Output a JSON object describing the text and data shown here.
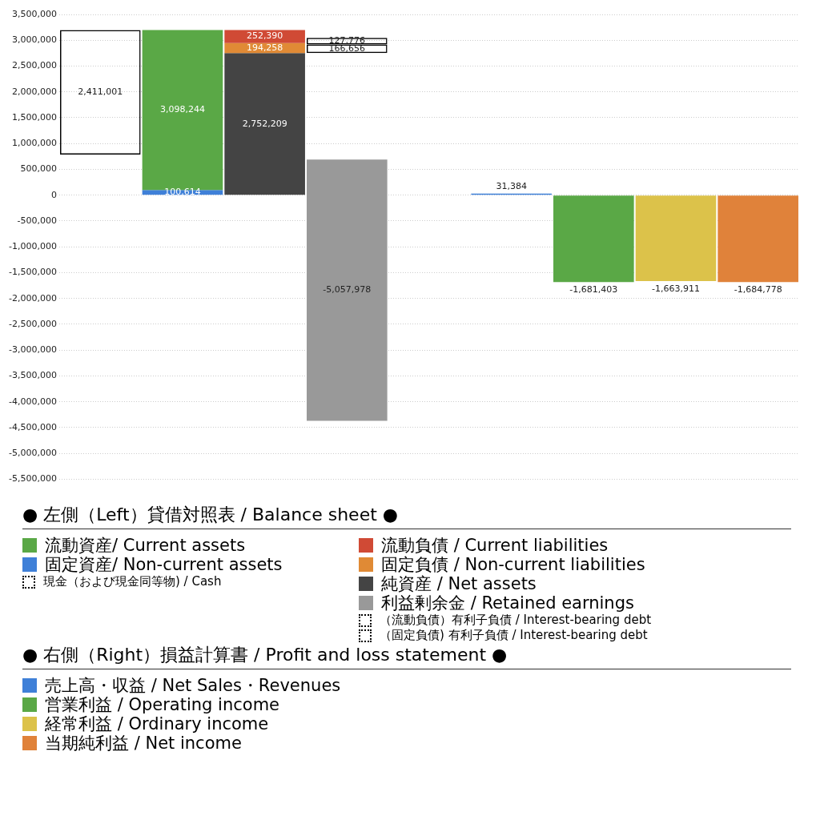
{
  "chart_data": {
    "type": "bar",
    "categories": [
      null,
      null,
      null,
      null,
      null,
      null,
      null,
      null,
      null
    ],
    "ylim": [
      -5500000,
      3500000
    ],
    "yticks": [
      {
        "value": -5500000,
        "label": "-5,500,000"
      },
      {
        "value": -5000000,
        "label": "-5,000,000"
      },
      {
        "value": -4500000,
        "label": "-4,500,000"
      },
      {
        "value": -4000000,
        "label": "-4,000,000"
      },
      {
        "value": -3500000,
        "label": "-3,500,000"
      },
      {
        "value": -3000000,
        "label": "-3,000,000"
      },
      {
        "value": -2500000,
        "label": "-2,500,000"
      },
      {
        "value": -2000000,
        "label": "-2,000,000"
      },
      {
        "value": -1500000,
        "label": "-1,500,000"
      },
      {
        "value": -1000000,
        "label": "-1,000,000"
      },
      {
        "value": -500000,
        "label": "-500,000"
      },
      0,
      {
        "value": 500000,
        "label": "500,000"
      },
      {
        "value": 1000000,
        "label": "1,000,000"
      },
      {
        "value": 1500000,
        "label": "1,500,000"
      },
      {
        "value": 2000000,
        "label": "2,000,000"
      },
      {
        "value": 2500000,
        "label": "2,500,000"
      },
      {
        "value": 3000000,
        "label": "3,000,000"
      },
      {
        "value": 3500000,
        "label": "3,500,000"
      }
    ],
    "grid": "y",
    "legend": "bottom",
    "annotations": [
      "● 左側（Left）貸借対照表 / Balance sheet ●",
      "● 右側（Right）損益計算書 / Profit and loss statement ●"
    ],
    "series": [
      {
        "name": "流動資産/ Current assets",
        "color": "#5aa846",
        "values": [
          null,
          3098244,
          null,
          null,
          null,
          null,
          null,
          null,
          null
        ],
        "base": [
          null,
          100614,
          null,
          null,
          null,
          null,
          null,
          null,
          null
        ],
        "value_labels": [
          null,
          "3,098,244",
          null,
          null,
          null,
          null,
          null,
          null,
          null
        ]
      },
      {
        "name": "固定資産/ Non-current assets",
        "color": "#3f80d8",
        "values": [
          null,
          100614,
          null,
          null,
          null,
          null,
          null,
          null,
          null
        ],
        "value_labels": [
          null,
          "100,614",
          null,
          null,
          null,
          null,
          null,
          null,
          null
        ]
      },
      {
        "name": "現金（および現金同等物) / Cash",
        "color": "#000000",
        "line_style": "dotted",
        "values": [
          2411001,
          null,
          null,
          null,
          null,
          null,
          null,
          null,
          null
        ],
        "base": [
          787857,
          null,
          null,
          null,
          null,
          null,
          null,
          null,
          null
        ],
        "value_labels": [
          "2,411,001",
          null,
          null,
          null,
          null,
          null,
          null,
          null,
          null
        ]
      },
      {
        "name": "流動負債 /  Current liabilities",
        "color": "#d04a35",
        "values": [
          null,
          null,
          252390,
          null,
          null,
          null,
          null,
          null,
          null
        ],
        "base": [
          null,
          null,
          2946467,
          null,
          null,
          null,
          null,
          null,
          null
        ],
        "value_labels": [
          null,
          null,
          "252,390",
          null,
          null,
          null,
          null,
          null,
          null
        ]
      },
      {
        "name": "固定負債 / Non-current liabilities",
        "color": "#e08a35",
        "values": [
          null,
          null,
          194258,
          null,
          null,
          null,
          null,
          null,
          null
        ],
        "base": [
          null,
          null,
          2752209,
          null,
          null,
          null,
          null,
          null,
          null
        ],
        "value_labels": [
          null,
          null,
          "194,258",
          null,
          null,
          null,
          null,
          null,
          null
        ]
      },
      {
        "name": "純資産 / Net assets",
        "color": "#444444",
        "values": [
          null,
          null,
          2752209,
          null,
          null,
          null,
          null,
          null,
          null
        ],
        "value_labels": [
          null,
          null,
          "2,752,209",
          null,
          null,
          null,
          null,
          null,
          null
        ]
      },
      {
        "name": "利益剰余金 / Retained earnings",
        "color": "#999999",
        "values": [
          null,
          null,
          null,
          -5057978,
          null,
          null,
          null,
          null,
          null
        ],
        "base": [
          null,
          null,
          null,
          690000,
          null,
          null,
          null,
          null,
          null
        ],
        "value_labels": [
          null,
          null,
          null,
          "-5,057,978",
          null,
          null,
          null,
          null,
          null
        ]
      },
      {
        "name": "（流動負債）有利子負債 / Interest-bearing debt",
        "color": "#000000",
        "line_style": "dotted",
        "values": [
          null,
          null,
          null,
          127776,
          null,
          null,
          null,
          null,
          null
        ],
        "base": [
          null,
          null,
          null,
          2918865,
          null,
          null,
          null,
          null,
          null
        ],
        "value_labels": [
          null,
          null,
          null,
          "127,776",
          null,
          null,
          null,
          null,
          null
        ]
      },
      {
        "name": "（固定負債) 有利子負債 / Interest-bearing debt",
        "color": "#000000",
        "line_style": "dotted",
        "values": [
          null,
          null,
          null,
          166656,
          null,
          null,
          null,
          null,
          null
        ],
        "base": [
          null,
          null,
          null,
          2752209,
          null,
          null,
          null,
          null,
          null
        ],
        "value_labels": [
          null,
          null,
          null,
          "166,656",
          null,
          null,
          null,
          null,
          null
        ]
      },
      {
        "name": "売上高・収益 / Net Sales・Revenues",
        "color": "#3f80d8",
        "values": [
          null,
          null,
          null,
          null,
          null,
          31384,
          null,
          null,
          null
        ],
        "value_labels": [
          null,
          null,
          null,
          null,
          null,
          "31,384",
          null,
          null,
          null
        ]
      },
      {
        "name": "営業利益 / Operating income",
        "color": "#5aa846",
        "values": [
          null,
          null,
          null,
          null,
          null,
          null,
          -1681403,
          null,
          null
        ],
        "value_labels": [
          null,
          null,
          null,
          null,
          null,
          null,
          "-1,681,403",
          null,
          null
        ]
      },
      {
        "name": "経常利益 / Ordinary income",
        "color": "#dcc24a",
        "values": [
          null,
          null,
          null,
          null,
          null,
          null,
          null,
          -1663911,
          null
        ],
        "value_labels": [
          null,
          null,
          null,
          null,
          null,
          null,
          null,
          "-1,663,911",
          null
        ]
      },
      {
        "name": "当期純利益 / Net income",
        "color": "#e0823a",
        "values": [
          null,
          null,
          null,
          null,
          null,
          null,
          null,
          null,
          -1684778
        ],
        "value_labels": [
          null,
          null,
          null,
          null,
          null,
          null,
          null,
          null,
          "-1,684,778"
        ]
      }
    ]
  }
}
